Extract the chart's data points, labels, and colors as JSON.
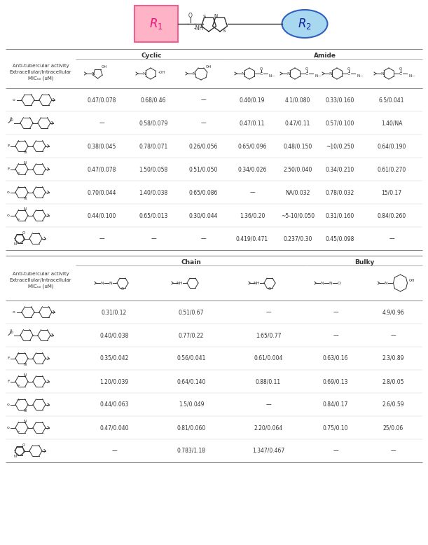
{
  "section1_header_left": "Cyclic",
  "section1_header_right": "Amide",
  "section2_header_left": "Chain",
  "section2_header_right": "Bulky",
  "col_label_lines": [
    "Anti-tubercular activity",
    "Extracellular/Intracellular",
    "MIC₅₀ (uM)"
  ],
  "table1_data": [
    [
      "0.47/0.078",
      "0.68/0.46",
      "—",
      "0.40/0.19",
      "4.1/0.080",
      "0.33/0.160",
      "6.5/0.041"
    ],
    [
      "—",
      "0.58/0.079",
      "—",
      "0.47/0.11",
      "0.47/0.11",
      "0.57/0.100",
      "1.40/NA"
    ],
    [
      "0.38/0.045",
      "0.78/0.071",
      "0.26/0.056",
      "0.65/0.096",
      "0.48/0.150",
      "~10/0.250",
      "0.64/0.190"
    ],
    [
      "0.47/0.078",
      "1.50/0.058",
      "0.51/0.050",
      "0.34/0.026",
      "2.50/0.040",
      "0.34/0.210",
      "0.61/0.270"
    ],
    [
      "0.70/0.044",
      "1.40/0.038",
      "0.65/0.086",
      "—",
      "NA/0.032",
      "0.78/0.032",
      "15/0.17"
    ],
    [
      "0.44/0.100",
      "0.65/0.013",
      "0.30/0.044",
      "1.36/0.20",
      "~5-10/0.050",
      "0.31/0.160",
      "0.84/0.260"
    ],
    [
      "—",
      "—",
      "—",
      "0.419/0.471",
      "0.237/0.30",
      "0.45/0.098",
      "—"
    ]
  ],
  "table2_data": [
    [
      "0.31/0.12",
      "0.51/0.67",
      "—",
      "—",
      "4.9/0.96"
    ],
    [
      "0.40/0.038",
      "0.77/0.22",
      "1.65/0.77",
      "—",
      "—"
    ],
    [
      "0.35/0.042",
      "0.56/0.041",
      "0.61/0.004",
      "0.63/0.16",
      "2.3/0.89"
    ],
    [
      "1.20/0.039",
      "0.64/0.140",
      "0.88/0.11",
      "0.69/0.13",
      "2.8/0.05"
    ],
    [
      "0.44/0.063",
      "1.5/0.049",
      "—",
      "0.84/0.17",
      "2.6/0.59"
    ],
    [
      "0.47/0.040",
      "0.81/0.060",
      "2.20/0.064",
      "0.75/0.10",
      "25/0.06"
    ],
    [
      "—",
      "0.783/1.18",
      "1.347/0.467",
      "—",
      "—"
    ]
  ],
  "bg_color": "#ffffff",
  "data_fs": 5.5,
  "struct_color": "#333333"
}
